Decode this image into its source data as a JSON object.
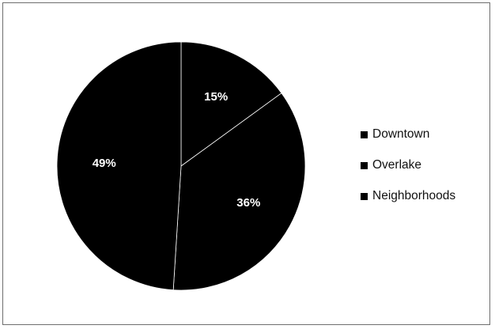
{
  "chart_data": {
    "type": "pie",
    "categories": [
      "Downtown",
      "Overlake",
      "Neighborhoods"
    ],
    "values": [
      15,
      36,
      49
    ],
    "labels": [
      "15%",
      "36%",
      "49%"
    ],
    "legend_position": "right",
    "colors": [
      "#000000",
      "#000000",
      "#000000"
    ]
  }
}
